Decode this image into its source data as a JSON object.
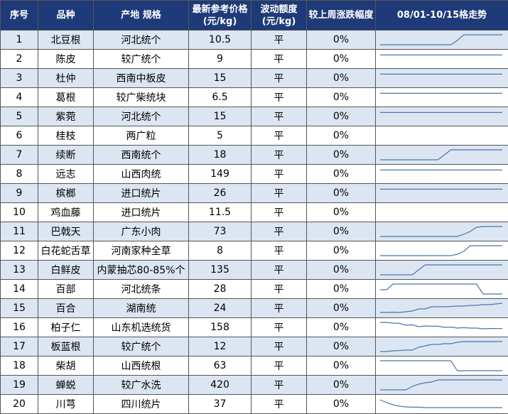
{
  "headers": {
    "no": "序号",
    "variety": "品种",
    "origin_spec": "产地 规格",
    "price_line1": "最新参考价格",
    "price_line2": "(元/kg)",
    "fluct_line1": "波动额度",
    "fluct_line2": "(元/kg)",
    "weekly_change": "较上周涨跌幅度",
    "trend": "08/01-10/15格走势"
  },
  "rows": [
    {
      "no": "1",
      "variety": "北豆根",
      "origin": "河北统个",
      "price": "10.5",
      "fluct": "平",
      "change": "0%",
      "trend": [
        0.85,
        0.85,
        0.85,
        0.85,
        0.85,
        0.85,
        0.85,
        0.85,
        0.85,
        0.85,
        0.85,
        0.85,
        0.55,
        0.15,
        0.15,
        0.15,
        0.15,
        0.15,
        0.15,
        0.15
      ]
    },
    {
      "no": "2",
      "variety": "陈皮",
      "origin": "较广统个",
      "price": "9",
      "fluct": "平",
      "change": "0%",
      "trend": [
        0.22,
        0.22,
        0.22,
        0.22,
        0.22,
        0.22,
        0.22,
        0.22,
        0.22,
        0.22,
        0.22,
        0.22,
        0.22,
        0.22,
        0.22,
        0.22,
        0.22,
        0.22,
        0.22,
        0.22
      ]
    },
    {
      "no": "3",
      "variety": "杜仲",
      "origin": "西南中板皮",
      "price": "15",
      "fluct": "平",
      "change": "0%",
      "trend": [
        0.22,
        0.22,
        0.22,
        0.22,
        0.22,
        0.22,
        0.22,
        0.22,
        0.22,
        0.22,
        0.22,
        0.22,
        0.22,
        0.22,
        0.22,
        0.22,
        0.22,
        0.22,
        0.22,
        0.22
      ]
    },
    {
      "no": "4",
      "variety": "葛根",
      "origin": "较广柴统块",
      "price": "6.5",
      "fluct": "平",
      "change": "0%",
      "trend": [
        0.22,
        0.22,
        0.22,
        0.22,
        0.22,
        0.22,
        0.22,
        0.22,
        0.22,
        0.22,
        0.22,
        0.22,
        0.22,
        0.22,
        0.22,
        0.22,
        0.22,
        0.22,
        0.22,
        0.22
      ]
    },
    {
      "no": "5",
      "variety": "紫菀",
      "origin": "河北统个",
      "price": "15",
      "fluct": "平",
      "change": "0%",
      "trend": [
        0.22,
        0.22,
        0.22,
        0.22,
        0.22,
        0.22,
        0.22,
        0.22,
        0.22,
        0.22,
        0.22,
        0.22,
        0.22,
        0.22,
        0.22,
        0.22,
        0.22,
        0.22,
        0.22,
        0.22
      ]
    },
    {
      "no": "6",
      "variety": "桂枝",
      "origin": "两广粒",
      "price": "5",
      "fluct": "平",
      "change": "0%",
      "trend": []
    },
    {
      "no": "7",
      "variety": "续断",
      "origin": "西南统个",
      "price": "18",
      "fluct": "平",
      "change": "0%",
      "trend": [
        0.85,
        0.85,
        0.85,
        0.85,
        0.85,
        0.85,
        0.85,
        0.85,
        0.85,
        0.85,
        0.5,
        0.15,
        0.15,
        0.15,
        0.15,
        0.15,
        0.15,
        0.15,
        0.15,
        0.15
      ]
    },
    {
      "no": "8",
      "variety": "远志",
      "origin": "山西肉统",
      "price": "149",
      "fluct": "平",
      "change": "0%",
      "trend": [
        0.22,
        0.22,
        0.22,
        0.22,
        0.22,
        0.22,
        0.22,
        0.22,
        0.22,
        0.22,
        0.22,
        0.22,
        0.22,
        0.22,
        0.22,
        0.22,
        0.22,
        0.22,
        0.22,
        0.22
      ]
    },
    {
      "no": "9",
      "variety": "槟榔",
      "origin": "进口统片",
      "price": "26",
      "fluct": "平",
      "change": "0%",
      "trend": [
        0.22,
        0.22,
        0.22,
        0.22,
        0.22,
        0.22,
        0.22,
        0.22,
        0.22,
        0.22,
        0.22,
        0.22,
        0.22,
        0.22,
        0.22,
        0.22,
        0.22,
        0.22,
        0.22,
        0.22
      ]
    },
    {
      "no": "10",
      "variety": "鸡血藤",
      "origin": "进口统片",
      "price": "11.5",
      "fluct": "平",
      "change": "0%",
      "trend": []
    },
    {
      "no": "11",
      "variety": "巴戟天",
      "origin": "广东小肉",
      "price": "73",
      "fluct": "平",
      "change": "0%",
      "trend": [
        0.85,
        0.85,
        0.85,
        0.85,
        0.85,
        0.85,
        0.85,
        0.85,
        0.85,
        0.85,
        0.85,
        0.85,
        0.85,
        0.7,
        0.5,
        0.2,
        0.15,
        0.15,
        0.15,
        0.15
      ]
    },
    {
      "no": "12",
      "variety": "白花蛇舌草",
      "origin": "河南家种全草",
      "price": "8",
      "fluct": "平",
      "change": "0%",
      "trend": [
        0.85,
        0.85,
        0.85,
        0.85,
        0.85,
        0.85,
        0.85,
        0.85,
        0.85,
        0.85,
        0.85,
        0.85,
        0.75,
        0.55,
        0.15,
        0.15,
        0.15,
        0.15,
        0.15,
        0.15
      ]
    },
    {
      "no": "13",
      "variety": "白鲜皮",
      "origin": "内蒙抽芯80-85%个",
      "price": "135",
      "fluct": "平",
      "change": "0%",
      "trend": [
        0.85,
        0.85,
        0.85,
        0.85,
        0.85,
        0.85,
        0.5,
        0.15,
        0.15,
        0.15,
        0.15,
        0.15,
        0.15,
        0.15,
        0.15,
        0.15,
        0.15,
        0.15,
        0.15,
        0.15
      ]
    },
    {
      "no": "14",
      "variety": "百部",
      "origin": "河北统条",
      "price": "28",
      "fluct": "平",
      "change": "0%",
      "trend": [
        0.55,
        0.55,
        0.15,
        0.15,
        0.15,
        0.15,
        0.15,
        0.15,
        0.15,
        0.15,
        0.15,
        0.15,
        0.15,
        0.15,
        0.15,
        0.15,
        0.85,
        0.85,
        0.85,
        0.85
      ]
    },
    {
      "no": "15",
      "variety": "百合",
      "origin": "湖南统",
      "price": "24",
      "fluct": "平",
      "change": "0%",
      "trend": [
        0.8,
        0.8,
        0.78,
        0.8,
        0.75,
        0.7,
        0.55,
        0.55,
        0.4,
        0.4,
        0.4,
        0.38,
        0.35,
        0.35,
        0.3,
        0.3,
        0.25,
        0.25,
        0.2,
        0.15
      ]
    },
    {
      "no": "16",
      "variety": "柏子仁",
      "origin": "山东机选统货",
      "price": "158",
      "fluct": "平",
      "change": "0%",
      "trend": [
        0.15,
        0.15,
        0.2,
        0.22,
        0.35,
        0.32,
        0.45,
        0.4,
        0.42,
        0.42,
        0.5,
        0.48,
        0.55,
        0.52,
        0.55,
        0.55,
        0.6,
        0.58,
        0.58,
        0.58
      ]
    },
    {
      "no": "17",
      "variety": "板蓝根",
      "origin": "较广统个",
      "price": "12",
      "fluct": "平",
      "change": "0%",
      "trend": [
        0.85,
        0.85,
        0.8,
        0.78,
        0.75,
        0.75,
        0.55,
        0.45,
        0.35,
        0.35,
        0.3,
        0.3,
        0.2,
        0.15,
        0.15,
        0.15,
        0.15,
        0.15,
        0.15,
        0.15
      ]
    },
    {
      "no": "18",
      "variety": "柴胡",
      "origin": "山西统根",
      "price": "63",
      "fluct": "平",
      "change": "0%",
      "trend": [
        0.15,
        0.15,
        0.15,
        0.15,
        0.15,
        0.15,
        0.15,
        0.15,
        0.15,
        0.15,
        0.15,
        0.15,
        0.85,
        0.85,
        0.85,
        0.85,
        0.85,
        0.85,
        0.85,
        0.85
      ]
    },
    {
      "no": "19",
      "variety": "蝉蜕",
      "origin": "较广水洗",
      "price": "420",
      "fluct": "平",
      "change": "0%",
      "trend": [
        0.85,
        0.85,
        0.85,
        0.85,
        0.85,
        0.6,
        0.45,
        0.35,
        0.3,
        0.15,
        0.15,
        0.15,
        0.15,
        0.15,
        0.15,
        0.15,
        0.15,
        0.15,
        0.15,
        0.15
      ]
    },
    {
      "no": "20",
      "variety": "川芎",
      "origin": "四川统片",
      "price": "37",
      "fluct": "平",
      "change": "0%",
      "trend": [
        0.2,
        0.4,
        0.55,
        0.65,
        0.7,
        0.72,
        0.72,
        0.75,
        0.75,
        0.75,
        0.75,
        0.75,
        0.75,
        0.75,
        0.75,
        0.75,
        0.75,
        0.75,
        0.75,
        0.75
      ]
    }
  ],
  "colors": {
    "header_bg": "#1e3a78",
    "header_text": "#ffffff",
    "row_alt_bg": "#dce6f2",
    "trend_line": "#4a76ad"
  }
}
